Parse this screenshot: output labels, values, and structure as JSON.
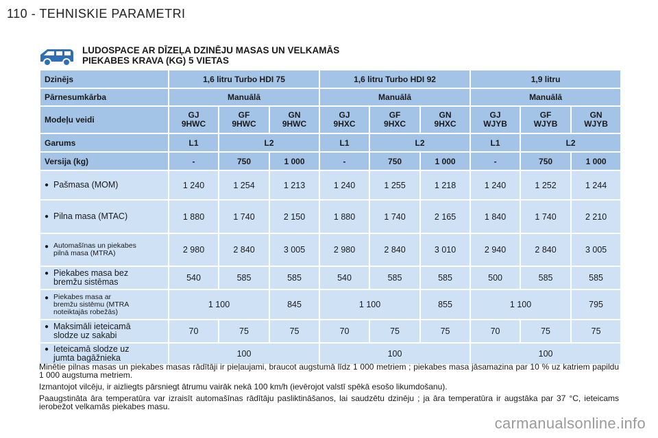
{
  "page_header": "110 - TEHNISKIE PARAMETRI",
  "title": {
    "line1": "LUDOSPACE AR DĪZEĻA DZINĒJU MASAS UN VELKAMĀS",
    "line2": "PIEKABES KRAVA (KG) 5 VIETAS"
  },
  "icons": {
    "vehicle": "van-icon"
  },
  "colors": {
    "header_cell": "#a3c4e6",
    "data_cell": "#cfe2f5"
  },
  "table": {
    "engine": {
      "label": "Dzinējs",
      "values": [
        "1,6 litru Turbo HDI 75",
        "1,6 litru Turbo HDI 92",
        "1,9 litru"
      ]
    },
    "gearbox": {
      "label": "Pārnesumkārba",
      "values": [
        "Manuālā",
        "Manuālā",
        "Manuālā"
      ]
    },
    "models": {
      "label": "Modeļu veidi",
      "values": [
        "GJ\n9HWC",
        "GF\n9HWC",
        "GN\n9HWC",
        "GJ\n9HXC",
        "GF\n9HXC",
        "GN\n9HXC",
        "GJ\nWJYB",
        "GF\nWJYB",
        "GN\nWJYB"
      ]
    },
    "length": {
      "label": "Garums",
      "values": [
        "L1",
        "L2",
        "L1",
        "L2",
        "L1",
        "L2"
      ]
    },
    "version": {
      "label": "Versija (kg)",
      "values": [
        "-",
        "750",
        "1 000",
        "-",
        "750",
        "1 000",
        "-",
        "750",
        "1 000"
      ]
    },
    "mom": {
      "label": "Pašmasa (MOM)",
      "values": [
        "1 240",
        "1 254",
        "1 213",
        "1 240",
        "1 255",
        "1 218",
        "1 240",
        "1 252",
        "1 244"
      ]
    },
    "mtac": {
      "label": "Pilna masa (MTAC)",
      "values": [
        "1 880",
        "1 740",
        "2 150",
        "1 880",
        "1 740",
        "2 165",
        "1 840",
        "1 740",
        "2 210"
      ]
    },
    "mtra": {
      "label": "Automašīnas un piekabes\npilnā masa (MTRA)",
      "values": [
        "2 980",
        "2 840",
        "3 005",
        "2 980",
        "2 840",
        "3 010",
        "2 940",
        "2 840",
        "3 005"
      ]
    },
    "unbraked": {
      "label": "Piekabes masa bez\nbremžu sistēmas",
      "values": [
        "540",
        "585",
        "585",
        "540",
        "585",
        "585",
        "500",
        "585",
        "585"
      ]
    },
    "braked": {
      "label": "Piekabes masa ar\nbremžu sistēmu (MTRA\nnoteiktajās robežās)",
      "values": [
        "1 100",
        "845",
        "1 100",
        "855",
        "1 100",
        "795"
      ]
    },
    "hitch": {
      "label": "Maksimāli ieteicamā\nslodze uz sakabi",
      "values": [
        "70",
        "75",
        "75",
        "70",
        "75",
        "75",
        "70",
        "75",
        "75"
      ]
    },
    "roof": {
      "label": "Ieteicamā slodze uz\njumta bagāžnieka",
      "values": [
        "100",
        "100",
        "100"
      ]
    }
  },
  "notes": [
    "Minētie pilnas masas un piekabes masas rādītāji ir pieļaujami, braucot augstumā līdz 1 000 metriem ; piekabes masa jāsamazina par 10 % uz katriem papildu 1 000 augstuma metriem.",
    "Izmantojot vilcēju, ir aizliegts pārsniegt ātrumu vairāk nekā 100 km/h (ievērojot valstī spēkā esošo likumdošanu).",
    "Paaugstināta āra temperatūra var izraisīt automašīnas rādītāju pasliktināšanos, lai saudzētu dzinēju ; ja āra temperatūra ir augstāka par 37 °C, ieteicams ierobežot velkamās piekabes masu."
  ],
  "watermark": "carmanualsonline.info"
}
